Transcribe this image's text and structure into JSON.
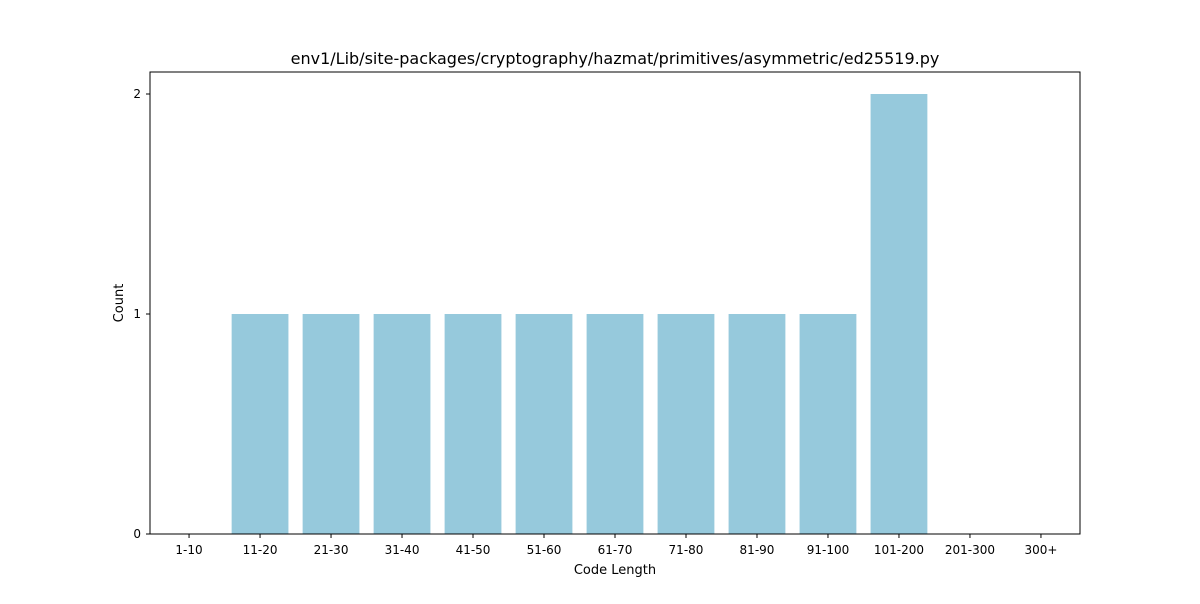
{
  "chart_data": {
    "type": "bar",
    "title": "env1/Lib/site-packages/cryptography/hazmat/primitives/asymmetric/ed25519.py",
    "xlabel": "Code Length",
    "ylabel": "Count",
    "categories": [
      "1-10",
      "11-20",
      "21-30",
      "31-40",
      "41-50",
      "51-60",
      "61-70",
      "71-80",
      "81-90",
      "91-100",
      "101-200",
      "201-300",
      "300+"
    ],
    "values": [
      0,
      1,
      1,
      1,
      1,
      1,
      1,
      1,
      1,
      1,
      2,
      0,
      0
    ],
    "ylim": [
      0,
      2.1
    ],
    "yticks": [
      0,
      1,
      2
    ],
    "bar_color": "#96c9dc",
    "grid": false,
    "legend": "none"
  }
}
